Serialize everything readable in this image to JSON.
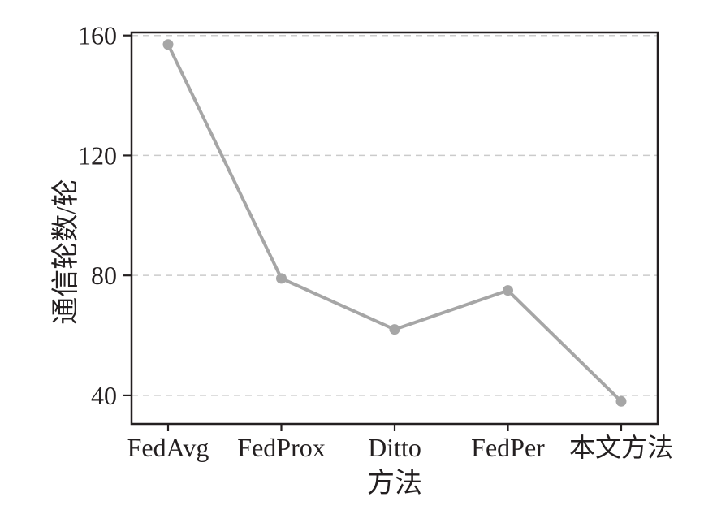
{
  "chart_data": {
    "type": "line",
    "categories": [
      "FedAvg",
      "FedProx",
      "Ditto",
      "FedPer",
      "本文方法"
    ],
    "values": [
      157,
      79,
      62,
      75,
      38
    ],
    "title": "",
    "xlabel": "方法",
    "ylabel": "通信轮数/轮",
    "yticks": [
      40,
      80,
      120,
      160
    ],
    "ylim": [
      30.5,
      161
    ],
    "grid": "horizontal-dashed",
    "legend": "none",
    "colors": {
      "line": "#a6a6a6",
      "marker": "#a6a6a6",
      "grid": "#cbcbcb",
      "axis": "#231f20",
      "text": "#231f20",
      "background": "#ffffff"
    }
  }
}
